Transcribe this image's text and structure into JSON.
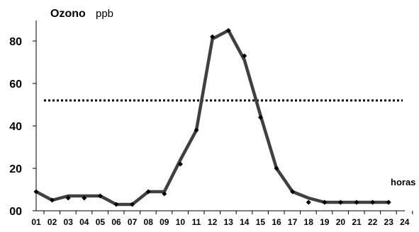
{
  "chart_data": {
    "type": "line",
    "title": "Ozono",
    "unit": "ppb",
    "xlabel": "horas",
    "ylabel": "",
    "ylim": [
      0,
      90
    ],
    "xlim": [
      1,
      24
    ],
    "grid": false,
    "y_ticks": [
      {
        "value": 0,
        "label": "00"
      },
      {
        "value": 20,
        "label": "20"
      },
      {
        "value": 40,
        "label": "40"
      },
      {
        "value": 60,
        "label": "60"
      },
      {
        "value": 80,
        "label": "80"
      }
    ],
    "categories": [
      "01",
      "02",
      "03",
      "04",
      "05",
      "06",
      "07",
      "08",
      "09",
      "10",
      "11",
      "12",
      "13",
      "14",
      "15",
      "16",
      "17",
      "18",
      "19",
      "20",
      "21",
      "22",
      "23",
      "24"
    ],
    "series": [
      {
        "kind": "line",
        "color": "#404040",
        "x": [
          1,
          2,
          3,
          4,
          5,
          6,
          7,
          8,
          9,
          10,
          11,
          12,
          13,
          14,
          15,
          16,
          17,
          18,
          19,
          20,
          21,
          22,
          23
        ],
        "values": [
          9,
          5,
          7,
          7,
          7,
          3,
          3,
          9,
          9,
          24,
          38,
          81,
          85,
          71,
          45,
          20,
          9,
          6,
          4,
          4,
          4,
          4,
          4
        ]
      },
      {
        "kind": "markers",
        "color": "#000000",
        "x": [
          1,
          2,
          3,
          4,
          5,
          6,
          7,
          8,
          9,
          10,
          11,
          12,
          13,
          14,
          15,
          16,
          17,
          18,
          19,
          20,
          21,
          22,
          23
        ],
        "values": [
          9,
          5,
          6,
          6,
          7,
          3,
          3,
          9,
          8,
          22,
          38,
          82,
          85,
          73,
          44,
          20,
          9,
          4,
          4,
          4,
          4,
          4,
          4
        ]
      }
    ],
    "threshold": {
      "value": 52,
      "style": "dotted",
      "color": "#000000"
    }
  }
}
